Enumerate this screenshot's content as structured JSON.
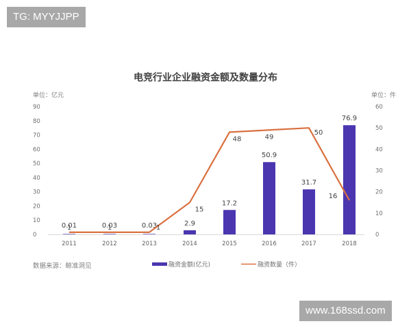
{
  "watermarks": {
    "top_left": "TG: MYYJJPP",
    "bottom_right": "www.168ssd.com"
  },
  "chart_data": {
    "type": "bar+line",
    "title": "电竞行业企业融资金额及数量分布",
    "categories": [
      "2011",
      "2012",
      "2013",
      "2014",
      "2015",
      "2016",
      "2017",
      "2018"
    ],
    "series": [
      {
        "name": "融资金额(亿元)",
        "type": "bar",
        "axis": "left",
        "color": "#4b36b0",
        "values": [
          0.01,
          0.03,
          0.03,
          2.9,
          17.2,
          50.9,
          31.7,
          76.9
        ],
        "labels": [
          "0.01",
          "0.03",
          "0.03",
          "2.9",
          "17.2",
          "50.9",
          "31.7",
          "76.9"
        ]
      },
      {
        "name": "融资数量（件）",
        "type": "line",
        "axis": "right",
        "color": "#d9703f",
        "values": [
          1,
          1,
          1,
          15,
          48,
          49,
          50,
          16
        ],
        "labels": [
          "1",
          "1",
          "1",
          "15",
          "48",
          "49",
          "50",
          "16"
        ]
      }
    ],
    "left_axis": {
      "unit_label": "单位：亿元",
      "ticks": [
        "0",
        "10",
        "20",
        "30",
        "40",
        "50",
        "60",
        "70",
        "80",
        "90"
      ],
      "ylim": [
        0,
        90
      ]
    },
    "right_axis": {
      "unit_label": "单位：件",
      "ticks": [
        "0",
        "10",
        "20",
        "30",
        "40",
        "50",
        "60"
      ],
      "ylim": [
        0,
        60
      ]
    },
    "source": "数据来源：鲸准洞见",
    "legend": {
      "position": "bottom",
      "items": [
        "融资金额(亿元)",
        "融资数量（件）"
      ]
    },
    "grid": false
  }
}
